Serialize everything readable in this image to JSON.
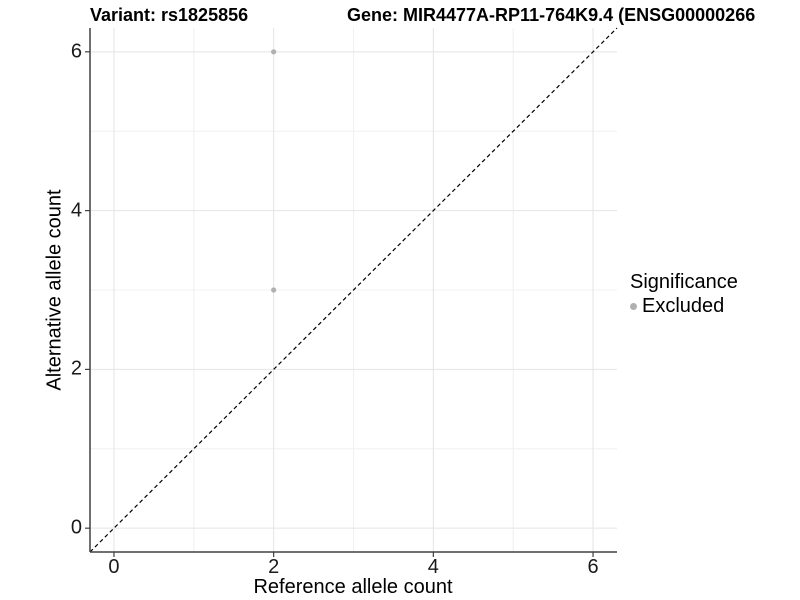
{
  "header": {
    "variant_title": "Variant: rs1825856",
    "gene_title": "Gene: MIR4477A-RP11-764K9.4 (ENSG00000266"
  },
  "legend": {
    "title": "Significance",
    "items": [
      {
        "label": "Excluded",
        "color": "#b0b0b0"
      }
    ]
  },
  "chart_data": {
    "type": "scatter",
    "title_left": "Variant: rs1825856",
    "title_right": "Gene: MIR4477A-RP11-764K9.4 (ENSG00000266",
    "xlabel": "Reference allele count",
    "ylabel": "Alternative allele count",
    "xlim": [
      -0.3,
      6.3
    ],
    "ylim": [
      -0.3,
      6.3
    ],
    "x_ticks": [
      0,
      2,
      4,
      6
    ],
    "y_ticks": [
      0,
      2,
      4,
      6
    ],
    "grid": {
      "major": [
        0,
        2,
        4,
        6
      ],
      "minor": [
        1,
        3,
        5
      ]
    },
    "points": [
      {
        "x": 2,
        "y": 6,
        "series": "Excluded"
      },
      {
        "x": 2,
        "y": 3,
        "series": "Excluded"
      }
    ],
    "reference_line": {
      "slope": 1,
      "intercept": 0,
      "style": "dashed"
    },
    "legend_position": "right",
    "colors": {
      "point": "#b0b0b0",
      "reference_line": "#000000",
      "grid_major": "#e4e4e4",
      "grid_minor": "#f0f0f0",
      "axis_line": "#404040",
      "tick_text": "#1a1a1a"
    }
  }
}
